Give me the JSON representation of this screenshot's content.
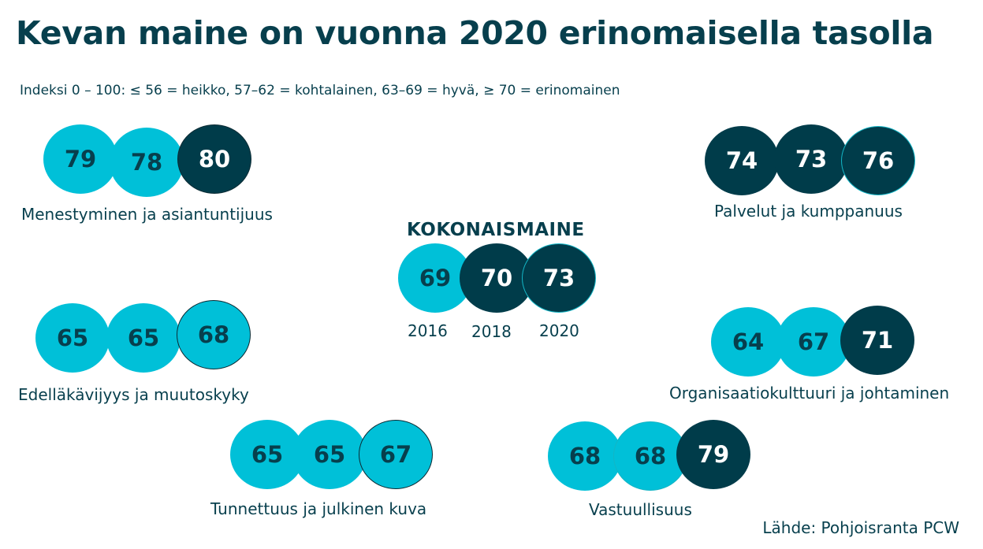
{
  "title": "Kevan maine on vuonna 2020 erinomaisella tasolla",
  "subtitle": "Indeksi 0 – 100: ≤ 56 = heikko, 57–62 = kohtalainen, 63–69 = hyvä, ≥ 70 = erinomainen",
  "source": "Lähde: Pohjoisranta PCW",
  "colors": {
    "light": "#00c0d8",
    "dark": "#003c4a",
    "text": "#073f4d"
  },
  "chart_data": {
    "type": "table",
    "title": "Kevan maine on vuonna 2020 erinomaisella tasolla",
    "years": [
      "2016",
      "2018",
      "2020"
    ],
    "overall": {
      "name": "KOKONAISMAINE",
      "values": [
        69,
        70,
        73
      ]
    },
    "series": [
      {
        "name": "Menestyminen ja asiantuntijuus",
        "values": [
          79,
          78,
          80
        ]
      },
      {
        "name": "Palvelut ja kumppanuus",
        "values": [
          74,
          73,
          76
        ]
      },
      {
        "name": "Edelläkävijyys ja muutoskyky",
        "values": [
          65,
          65,
          68
        ]
      },
      {
        "name": "Organisaatiokulttuuri ja johtaminen",
        "values": [
          64,
          67,
          71
        ]
      },
      {
        "name": "Tunnettuus ja julkinen kuva",
        "values": [
          65,
          65,
          67
        ]
      },
      {
        "name": "Vastuullisuus",
        "values": [
          68,
          68,
          79
        ]
      }
    ]
  }
}
